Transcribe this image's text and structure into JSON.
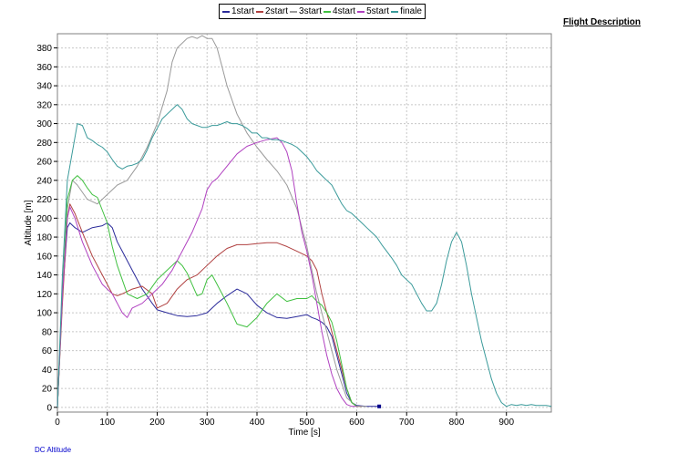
{
  "flight_link": "Flight Description",
  "footer_left": "DC Altitude",
  "chart_data": {
    "type": "line",
    "xlabel": "Time [s]",
    "ylabel": "Altitude [m]",
    "xlim": [
      0,
      990
    ],
    "ylim": [
      -5,
      395
    ],
    "xticks": [
      0,
      100,
      200,
      300,
      400,
      500,
      600,
      700,
      800,
      900
    ],
    "yticks": [
      0,
      20,
      40,
      60,
      80,
      100,
      120,
      140,
      160,
      180,
      200,
      220,
      240,
      260,
      280,
      300,
      320,
      340,
      360,
      380
    ],
    "grid": true,
    "legend_position": "top-center",
    "series": [
      {
        "name": "1start",
        "color": "#2a2a9a",
        "x": [
          0,
          10,
          20,
          25,
          35,
          50,
          70,
          90,
          100,
          110,
          120,
          130,
          150,
          170,
          190,
          200,
          220,
          240,
          260,
          280,
          300,
          320,
          340,
          360,
          380,
          400,
          420,
          440,
          460,
          480,
          500,
          510,
          520,
          530,
          540,
          550,
          560,
          570,
          580,
          590,
          600,
          620,
          640,
          645
        ],
        "y": [
          0,
          120,
          190,
          195,
          190,
          185,
          190,
          192,
          195,
          190,
          175,
          165,
          145,
          125,
          110,
          103,
          100,
          97,
          96,
          97,
          100,
          110,
          118,
          125,
          120,
          108,
          100,
          95,
          94,
          96,
          98,
          95,
          93,
          90,
          85,
          75,
          55,
          35,
          15,
          5,
          2,
          1,
          1,
          1
        ]
      },
      {
        "name": "2start",
        "color": "#b04040",
        "x": [
          0,
          10,
          20,
          25,
          35,
          50,
          70,
          90,
          100,
          110,
          120,
          130,
          150,
          170,
          190,
          200,
          220,
          240,
          260,
          280,
          300,
          320,
          340,
          360,
          380,
          400,
          420,
          440,
          460,
          480,
          500,
          510,
          520,
          530,
          540,
          550,
          560,
          570,
          580,
          590,
          600,
          610
        ],
        "y": [
          0,
          110,
          200,
          215,
          205,
          185,
          160,
          140,
          130,
          120,
          118,
          120,
          125,
          128,
          120,
          105,
          110,
          125,
          135,
          140,
          150,
          160,
          168,
          172,
          172,
          173,
          174,
          174,
          170,
          165,
          160,
          155,
          145,
          120,
          100,
          80,
          60,
          40,
          20,
          5,
          1,
          1
        ]
      },
      {
        "name": "3start",
        "color": "#9a9a9a",
        "x": [
          0,
          10,
          20,
          30,
          40,
          60,
          80,
          100,
          120,
          140,
          160,
          180,
          200,
          220,
          230,
          240,
          250,
          260,
          270,
          280,
          290,
          300,
          310,
          320,
          330,
          340,
          360,
          380,
          400,
          420,
          440,
          460,
          480,
          500,
          520,
          540,
          560,
          580,
          600,
          620
        ],
        "y": [
          0,
          120,
          210,
          240,
          235,
          220,
          215,
          225,
          235,
          240,
          255,
          275,
          300,
          335,
          365,
          380,
          385,
          390,
          392,
          390,
          393,
          390,
          390,
          380,
          360,
          340,
          310,
          290,
          275,
          262,
          250,
          235,
          210,
          170,
          120,
          80,
          40,
          10,
          1,
          1
        ]
      },
      {
        "name": "4start",
        "color": "#40c040",
        "x": [
          0,
          10,
          20,
          30,
          40,
          50,
          60,
          70,
          80,
          100,
          110,
          120,
          140,
          160,
          180,
          200,
          220,
          230,
          240,
          250,
          260,
          270,
          280,
          290,
          300,
          310,
          320,
          340,
          360,
          380,
          400,
          420,
          440,
          460,
          480,
          500,
          510,
          520,
          530,
          540,
          550,
          560,
          570,
          580,
          590,
          600
        ],
        "y": [
          0,
          120,
          220,
          240,
          245,
          240,
          232,
          225,
          222,
          195,
          170,
          150,
          120,
          115,
          120,
          135,
          145,
          150,
          155,
          150,
          142,
          130,
          118,
          120,
          135,
          140,
          130,
          110,
          88,
          85,
          95,
          110,
          120,
          112,
          115,
          115,
          118,
          112,
          108,
          100,
          90,
          70,
          45,
          20,
          5,
          1
        ]
      },
      {
        "name": "5start",
        "color": "#b040c0",
        "x": [
          0,
          10,
          20,
          25,
          35,
          50,
          70,
          90,
          110,
          120,
          130,
          140,
          150,
          170,
          190,
          210,
          230,
          250,
          270,
          290,
          300,
          310,
          320,
          340,
          360,
          380,
          400,
          420,
          430,
          440,
          450,
          460,
          470,
          480,
          490,
          500,
          510,
          520,
          530,
          540,
          550,
          560,
          570,
          580,
          590,
          600
        ],
        "y": [
          0,
          120,
          200,
          212,
          200,
          175,
          150,
          130,
          120,
          110,
          100,
          95,
          105,
          110,
          120,
          130,
          145,
          165,
          185,
          210,
          230,
          238,
          242,
          255,
          268,
          276,
          280,
          283,
          284,
          285,
          280,
          270,
          250,
          215,
          185,
          165,
          140,
          110,
          80,
          55,
          35,
          20,
          10,
          3,
          1,
          1
        ]
      },
      {
        "name": "finale",
        "color": "#3a9a9a",
        "x": [
          0,
          10,
          20,
          30,
          40,
          50,
          60,
          70,
          80,
          90,
          100,
          110,
          120,
          130,
          140,
          150,
          160,
          170,
          180,
          190,
          200,
          210,
          220,
          230,
          240,
          250,
          260,
          270,
          280,
          290,
          300,
          310,
          320,
          330,
          340,
          350,
          360,
          370,
          380,
          390,
          400,
          410,
          420,
          430,
          440,
          450,
          460,
          470,
          480,
          490,
          500,
          510,
          520,
          530,
          540,
          550,
          560,
          570,
          580,
          590,
          600,
          610,
          620,
          630,
          640,
          650,
          660,
          670,
          680,
          690,
          700,
          710,
          720,
          730,
          740,
          750,
          760,
          770,
          780,
          790,
          800,
          810,
          820,
          830,
          840,
          850,
          860,
          870,
          880,
          890,
          900,
          910,
          920,
          930,
          940,
          950,
          960,
          970,
          980,
          990
        ],
        "y": [
          0,
          140,
          240,
          270,
          300,
          298,
          285,
          282,
          278,
          275,
          270,
          262,
          255,
          252,
          255,
          256,
          258,
          262,
          272,
          285,
          295,
          305,
          310,
          315,
          320,
          315,
          305,
          300,
          298,
          296,
          296,
          298,
          298,
          300,
          302,
          300,
          300,
          298,
          295,
          290,
          290,
          285,
          285,
          283,
          283,
          282,
          280,
          278,
          275,
          270,
          265,
          258,
          250,
          245,
          240,
          235,
          225,
          215,
          208,
          205,
          200,
          195,
          190,
          185,
          180,
          172,
          165,
          158,
          150,
          140,
          135,
          130,
          120,
          110,
          102,
          102,
          110,
          130,
          155,
          175,
          185,
          175,
          150,
          120,
          95,
          70,
          50,
          30,
          15,
          5,
          1,
          3,
          2,
          3,
          2,
          3,
          2,
          2,
          2,
          1
        ]
      }
    ]
  }
}
